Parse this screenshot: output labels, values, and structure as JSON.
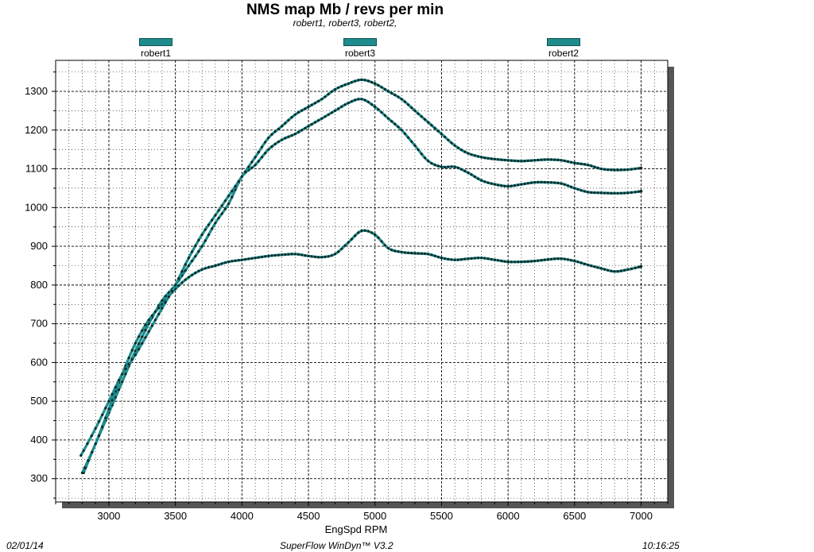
{
  "chart_data": {
    "type": "line",
    "title": "NMS  map Mb / revs per min",
    "subtitle": "robert1, robert3, robert2,",
    "xlabel": "EngSpd  RPM",
    "ylabel": "",
    "xlim": [
      2600,
      7200
    ],
    "ylim": [
      240,
      1380
    ],
    "xticks": [
      3000,
      3500,
      4000,
      4500,
      5000,
      5500,
      6000,
      6500,
      7000
    ],
    "yticks": [
      300,
      400,
      500,
      600,
      700,
      800,
      900,
      1000,
      1100,
      1200,
      1300
    ],
    "grid": true,
    "legend_position": "top",
    "line_color": "#1e8c8c",
    "marker_color": "#0a2a2a",
    "series": [
      {
        "name": "robert1",
        "points": [
          [
            2810,
            315
          ],
          [
            2900,
            390
          ],
          [
            3000,
            470
          ],
          [
            3100,
            550
          ],
          [
            3200,
            630
          ],
          [
            3300,
            700
          ],
          [
            3400,
            760
          ],
          [
            3500,
            800
          ],
          [
            3600,
            850
          ],
          [
            3700,
            900
          ],
          [
            3800,
            960
          ],
          [
            3900,
            1010
          ],
          [
            4000,
            1080
          ],
          [
            4100,
            1110
          ],
          [
            4200,
            1150
          ],
          [
            4300,
            1175
          ],
          [
            4400,
            1190
          ],
          [
            4500,
            1210
          ],
          [
            4600,
            1230
          ],
          [
            4700,
            1250
          ],
          [
            4800,
            1270
          ],
          [
            4900,
            1280
          ],
          [
            5000,
            1260
          ],
          [
            5100,
            1230
          ],
          [
            5200,
            1200
          ],
          [
            5300,
            1160
          ],
          [
            5400,
            1120
          ],
          [
            5500,
            1105
          ],
          [
            5600,
            1105
          ],
          [
            5700,
            1090
          ],
          [
            5800,
            1070
          ],
          [
            5900,
            1060
          ],
          [
            6000,
            1055
          ],
          [
            6100,
            1060
          ],
          [
            6200,
            1065
          ],
          [
            6300,
            1065
          ],
          [
            6400,
            1062
          ],
          [
            6500,
            1050
          ],
          [
            6600,
            1040
          ],
          [
            6700,
            1038
          ],
          [
            6800,
            1037
          ],
          [
            6900,
            1038
          ],
          [
            7000,
            1042
          ]
        ]
      },
      {
        "name": "robert3",
        "points": [
          [
            2800,
            315
          ],
          [
            2900,
            390
          ],
          [
            3000,
            480
          ],
          [
            3100,
            570
          ],
          [
            3200,
            650
          ],
          [
            3300,
            710
          ],
          [
            3400,
            750
          ],
          [
            3500,
            790
          ],
          [
            3600,
            820
          ],
          [
            3700,
            840
          ],
          [
            3800,
            850
          ],
          [
            3900,
            860
          ],
          [
            4000,
            865
          ],
          [
            4100,
            870
          ],
          [
            4200,
            875
          ],
          [
            4300,
            878
          ],
          [
            4400,
            880
          ],
          [
            4500,
            875
          ],
          [
            4600,
            872
          ],
          [
            4700,
            880
          ],
          [
            4800,
            910
          ],
          [
            4900,
            940
          ],
          [
            5000,
            930
          ],
          [
            5100,
            895
          ],
          [
            5200,
            885
          ],
          [
            5300,
            882
          ],
          [
            5400,
            880
          ],
          [
            5500,
            870
          ],
          [
            5600,
            865
          ],
          [
            5700,
            868
          ],
          [
            5800,
            870
          ],
          [
            5900,
            865
          ],
          [
            6000,
            860
          ],
          [
            6100,
            860
          ],
          [
            6200,
            862
          ],
          [
            6300,
            866
          ],
          [
            6400,
            868
          ],
          [
            6500,
            862
          ],
          [
            6600,
            852
          ],
          [
            6700,
            843
          ],
          [
            6800,
            835
          ],
          [
            6900,
            840
          ],
          [
            7000,
            848
          ]
        ]
      },
      {
        "name": "robert2",
        "points": [
          [
            2790,
            360
          ],
          [
            2900,
            430
          ],
          [
            3000,
            500
          ],
          [
            3100,
            570
          ],
          [
            3200,
            620
          ],
          [
            3300,
            680
          ],
          [
            3400,
            740
          ],
          [
            3500,
            800
          ],
          [
            3600,
            870
          ],
          [
            3700,
            930
          ],
          [
            3800,
            980
          ],
          [
            3900,
            1030
          ],
          [
            4000,
            1080
          ],
          [
            4100,
            1130
          ],
          [
            4200,
            1180
          ],
          [
            4300,
            1210
          ],
          [
            4400,
            1240
          ],
          [
            4500,
            1260
          ],
          [
            4600,
            1280
          ],
          [
            4700,
            1305
          ],
          [
            4800,
            1320
          ],
          [
            4900,
            1330
          ],
          [
            5000,
            1320
          ],
          [
            5100,
            1300
          ],
          [
            5200,
            1280
          ],
          [
            5300,
            1250
          ],
          [
            5400,
            1220
          ],
          [
            5500,
            1190
          ],
          [
            5600,
            1160
          ],
          [
            5700,
            1140
          ],
          [
            5800,
            1130
          ],
          [
            5900,
            1125
          ],
          [
            6000,
            1122
          ],
          [
            6100,
            1120
          ],
          [
            6200,
            1122
          ],
          [
            6300,
            1124
          ],
          [
            6400,
            1122
          ],
          [
            6500,
            1115
          ],
          [
            6600,
            1110
          ],
          [
            6700,
            1100
          ],
          [
            6800,
            1097
          ],
          [
            6900,
            1098
          ],
          [
            7000,
            1102
          ]
        ]
      }
    ]
  },
  "legend": [
    {
      "label": "robert1"
    },
    {
      "label": "robert3"
    },
    {
      "label": "robert2"
    }
  ],
  "footer": {
    "date": "02/01/14",
    "software": "SuperFlow  WinDyn™  V3.2",
    "time": "10:16:25"
  }
}
